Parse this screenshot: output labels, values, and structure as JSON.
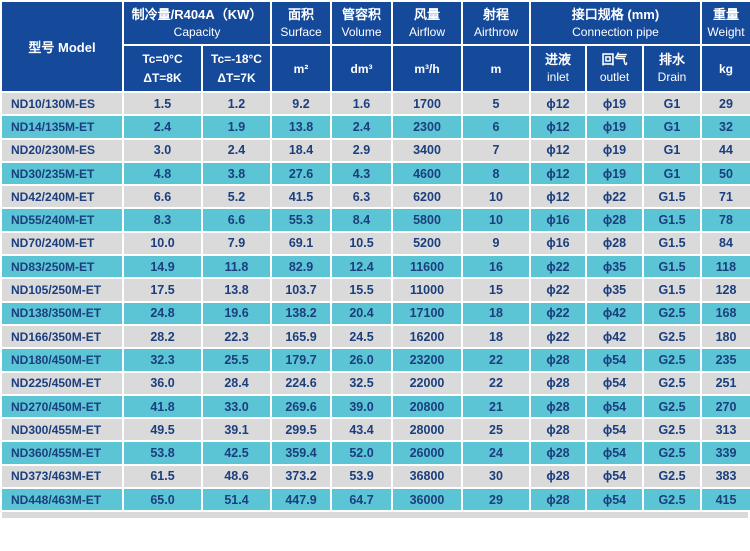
{
  "table": {
    "header": {
      "model": "型号 Model",
      "capacity": {
        "zh": "制冷量/R404A（KW）",
        "en": "Capacity",
        "tc0": {
          "line1": "Tc=0°C",
          "line2": "ΔT=8K"
        },
        "tc18": {
          "line1": "Tc=-18°C",
          "line2": "ΔT=7K"
        }
      },
      "surface": {
        "zh": "面积",
        "en": "Surface",
        "unit": "m²"
      },
      "volume": {
        "zh": "管容积",
        "en": "Volume",
        "unit": "dm³"
      },
      "airflow": {
        "zh": "风量",
        "en": "Airflow",
        "unit": "m³/h"
      },
      "airthrow": {
        "zh": "射程",
        "en": "Airthrow",
        "unit": "m"
      },
      "connection": {
        "zh": "接口规格 (mm)",
        "en": "Connection pipe",
        "inlet": {
          "zh": "进液",
          "en": "inlet"
        },
        "outlet": {
          "zh": "回气",
          "en": "outlet"
        },
        "drain": {
          "zh": "排水",
          "en": "Drain"
        }
      },
      "weight": {
        "zh": "重量",
        "en": "Weight",
        "unit": "kg"
      }
    },
    "rows": [
      [
        "ND10/130M-ES",
        "1.5",
        "1.2",
        "9.2",
        "1.6",
        "1700",
        "5",
        "ϕ12",
        "ϕ19",
        "G1",
        "29"
      ],
      [
        "ND14/135M-ET",
        "2.4",
        "1.9",
        "13.8",
        "2.4",
        "2300",
        "6",
        "ϕ12",
        "ϕ19",
        "G1",
        "32"
      ],
      [
        "ND20/230M-ES",
        "3.0",
        "2.4",
        "18.4",
        "2.9",
        "3400",
        "7",
        "ϕ12",
        "ϕ19",
        "G1",
        "44"
      ],
      [
        "ND30/235M-ET",
        "4.8",
        "3.8",
        "27.6",
        "4.3",
        "4600",
        "8",
        "ϕ12",
        "ϕ19",
        "G1",
        "50"
      ],
      [
        "ND42/240M-ET",
        "6.6",
        "5.2",
        "41.5",
        "6.3",
        "6200",
        "10",
        "ϕ12",
        "ϕ22",
        "G1.5",
        "71"
      ],
      [
        "ND55/240M-ET",
        "8.3",
        "6.6",
        "55.3",
        "8.4",
        "5800",
        "10",
        "ϕ16",
        "ϕ28",
        "G1.5",
        "78"
      ],
      [
        "ND70/240M-ET",
        "10.0",
        "7.9",
        "69.1",
        "10.5",
        "5200",
        "9",
        "ϕ16",
        "ϕ28",
        "G1.5",
        "84"
      ],
      [
        "ND83/250M-ET",
        "14.9",
        "11.8",
        "82.9",
        "12.4",
        "11600",
        "16",
        "ϕ22",
        "ϕ35",
        "G1.5",
        "118"
      ],
      [
        "ND105/250M-ET",
        "17.5",
        "13.8",
        "103.7",
        "15.5",
        "11000",
        "15",
        "ϕ22",
        "ϕ35",
        "G1.5",
        "128"
      ],
      [
        "ND138/350M-ET",
        "24.8",
        "19.6",
        "138.2",
        "20.4",
        "17100",
        "18",
        "ϕ22",
        "ϕ42",
        "G2.5",
        "168"
      ],
      [
        "ND166/350M-ET",
        "28.2",
        "22.3",
        "165.9",
        "24.5",
        "16200",
        "18",
        "ϕ22",
        "ϕ42",
        "G2.5",
        "180"
      ],
      [
        "ND180/450M-ET",
        "32.3",
        "25.5",
        "179.7",
        "26.0",
        "23200",
        "22",
        "ϕ28",
        "ϕ54",
        "G2.5",
        "235"
      ],
      [
        "ND225/450M-ET",
        "36.0",
        "28.4",
        "224.6",
        "32.5",
        "22000",
        "22",
        "ϕ28",
        "ϕ54",
        "G2.5",
        "251"
      ],
      [
        "ND270/450M-ET",
        "41.8",
        "33.0",
        "269.6",
        "39.0",
        "20800",
        "21",
        "ϕ28",
        "ϕ54",
        "G2.5",
        "270"
      ],
      [
        "ND300/455M-ET",
        "49.5",
        "39.1",
        "299.5",
        "43.4",
        "28000",
        "25",
        "ϕ28",
        "ϕ54",
        "G2.5",
        "313"
      ],
      [
        "ND360/455M-ET",
        "53.8",
        "42.5",
        "359.4",
        "52.0",
        "26000",
        "24",
        "ϕ28",
        "ϕ54",
        "G2.5",
        "339"
      ],
      [
        "ND373/463M-ET",
        "61.5",
        "48.6",
        "373.2",
        "53.9",
        "36800",
        "30",
        "ϕ28",
        "ϕ54",
        "G2.5",
        "383"
      ],
      [
        "ND448/463M-ET",
        "65.0",
        "51.4",
        "447.9",
        "64.7",
        "36000",
        "29",
        "ϕ28",
        "ϕ54",
        "G2.5",
        "415"
      ]
    ],
    "column_keys": [
      "model",
      "capacity-tc0",
      "capacity-tc18",
      "surface",
      "volume",
      "airflow",
      "airthrow",
      "inlet",
      "outlet",
      "drain",
      "weight"
    ]
  },
  "colors": {
    "header_bg": "#15499a",
    "header_text": "#ffffff",
    "row_gray_bg": "#dadada",
    "row_cyan_bg": "#5cc5d5",
    "data_text": "#1b3e7e",
    "grid": "#ffffff"
  }
}
